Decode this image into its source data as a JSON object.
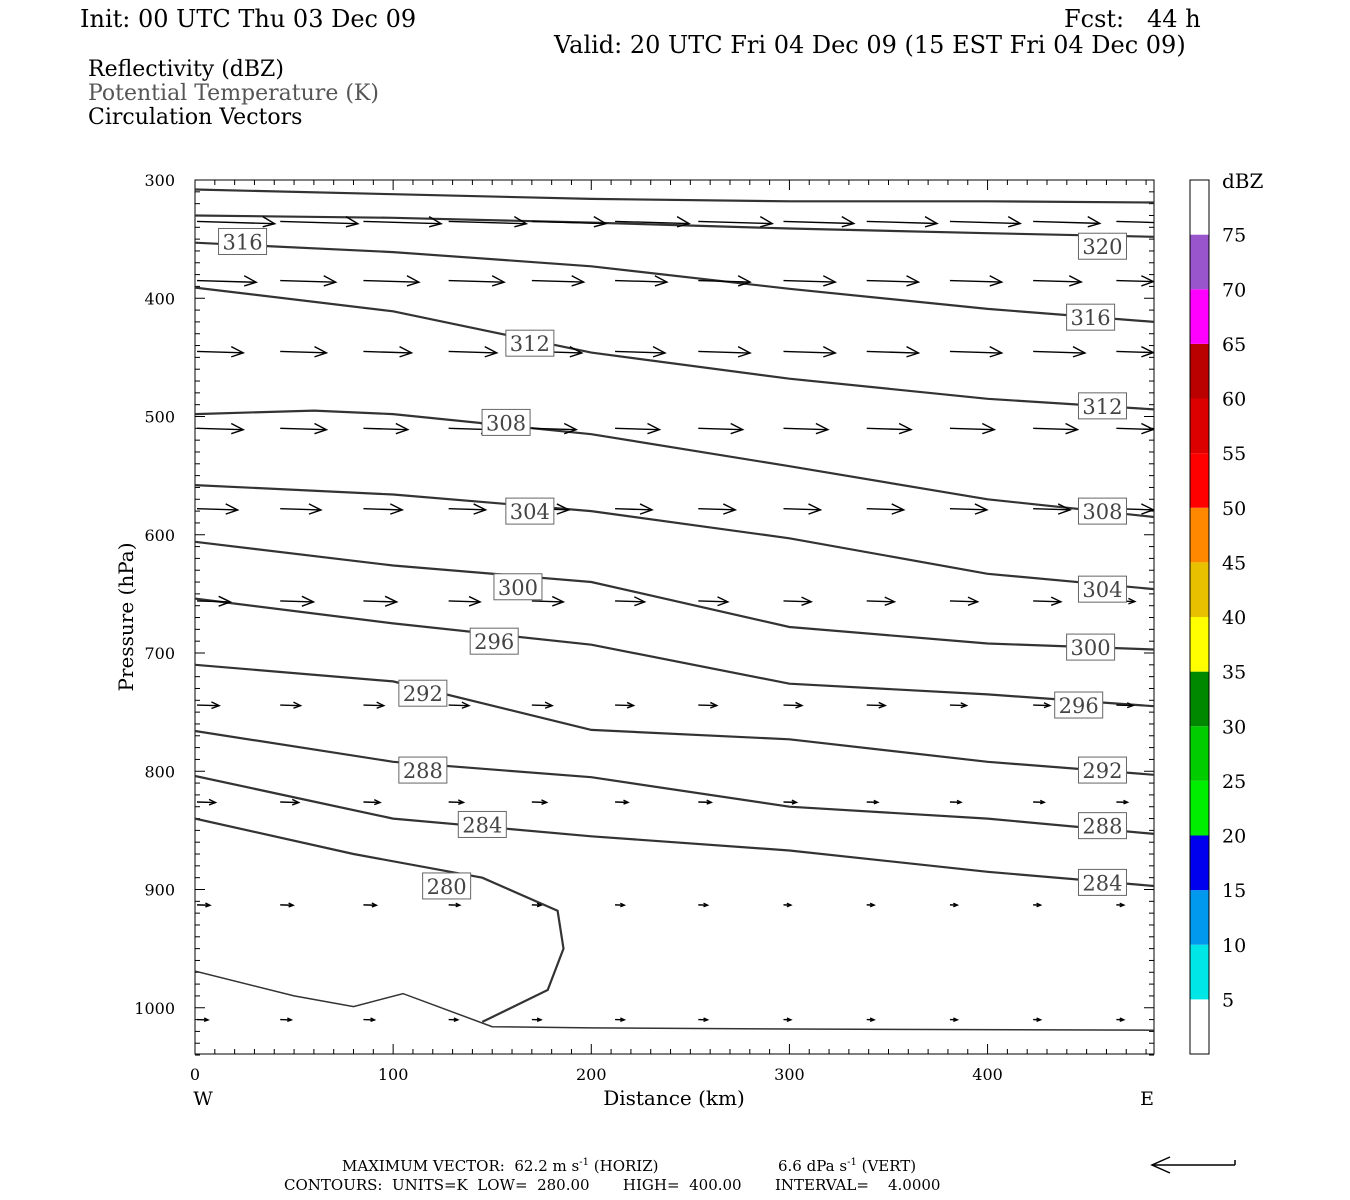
{
  "header": {
    "init": "Init: 00 UTC Thu 03 Dec 09",
    "fcst": "Fcst:   44 h",
    "valid": "Valid: 20 UTC Fri 04 Dec 09 (15 EST Fri 04 Dec 09)"
  },
  "fields": {
    "reflectivity": "Reflectivity (dBZ)",
    "theta": "Potential Temperature (K)",
    "vectors": "Circulation Vectors"
  },
  "axes": {
    "ylabel": "Pressure (hPa)",
    "xlabel": "Distance (km)",
    "west": "W",
    "east": "E"
  },
  "colorbar": {
    "title": "dBZ",
    "levels": [
      "5",
      "10",
      "15",
      "20",
      "25",
      "30",
      "35",
      "40",
      "45",
      "50",
      "55",
      "60",
      "65",
      "70",
      "75"
    ],
    "colors": [
      "#ffffff",
      "#00e6e6",
      "#0099ee",
      "#0000ee",
      "#00ee00",
      "#00cc00",
      "#008800",
      "#ffff00",
      "#e8c000",
      "#ff8800",
      "#ff0000",
      "#dd0000",
      "#bb0000",
      "#ff00ff",
      "#9955cc",
      "#ffffff"
    ]
  },
  "footer": {
    "max_vector": "MAXIMUM VECTOR:  62.2 m s",
    "max_vector_exp": "-1",
    "horiz": "(HORIZ)",
    "vert_val": "6.6 dPa s",
    "vert_exp": "-1",
    "vert": "(VERT)",
    "contours": "CONTOURS:  UNITS=K  LOW=  280.00       HIGH=  400.00       INTERVAL=    4.0000"
  },
  "chart_data": {
    "type": "line",
    "xlabel": "Distance (km)",
    "ylabel": "Pressure (hPa)",
    "xlim": [
      0,
      484
    ],
    "ylim": [
      1040,
      300
    ],
    "xticks": [
      0,
      100,
      200,
      300,
      400
    ],
    "yticks": [
      300,
      400,
      500,
      600,
      700,
      800,
      900,
      1000
    ],
    "series": [
      {
        "name": "",
        "x": [
          0,
          100,
          200,
          300,
          400,
          484
        ],
        "y": [
          308,
          312,
          316,
          318,
          318,
          319
        ]
      },
      {
        "name": "320",
        "x": [
          0,
          100,
          200,
          300,
          400,
          484
        ],
        "y": [
          330,
          332,
          336,
          341,
          345,
          348
        ]
      },
      {
        "name": "316",
        "x": [
          0,
          100,
          200,
          300,
          400,
          484
        ],
        "y": [
          353,
          361,
          373,
          392,
          409,
          420
        ]
      },
      {
        "name": "312",
        "x": [
          0,
          100,
          200,
          300,
          400,
          484
        ],
        "y": [
          391,
          411,
          446,
          468,
          485,
          494
        ]
      },
      {
        "name": "308",
        "x": [
          0,
          60,
          100,
          200,
          300,
          400,
          484
        ],
        "y": [
          498,
          495,
          498,
          515,
          542,
          570,
          585
        ]
      },
      {
        "name": "304",
        "x": [
          0,
          100,
          200,
          300,
          400,
          484
        ],
        "y": [
          558,
          566,
          580,
          603,
          633,
          646
        ]
      },
      {
        "name": "300",
        "x": [
          0,
          100,
          200,
          300,
          400,
          484
        ],
        "y": [
          606,
          626,
          640,
          678,
          692,
          697
        ]
      },
      {
        "name": "296",
        "x": [
          0,
          100,
          200,
          300,
          400,
          484
        ],
        "y": [
          654,
          675,
          693,
          726,
          735,
          745
        ]
      },
      {
        "name": "292",
        "x": [
          0,
          100,
          200,
          300,
          400,
          484
        ],
        "y": [
          710,
          724,
          765,
          773,
          792,
          803
        ]
      },
      {
        "name": "288",
        "x": [
          0,
          100,
          200,
          300,
          400,
          484
        ],
        "y": [
          766,
          792,
          805,
          830,
          840,
          853
        ]
      },
      {
        "name": "284",
        "x": [
          0,
          100,
          200,
          300,
          400,
          484
        ],
        "y": [
          804,
          840,
          855,
          867,
          885,
          897
        ]
      },
      {
        "name": "280",
        "x": [
          0,
          80,
          145,
          183,
          186,
          178,
          145
        ],
        "y": [
          840,
          870,
          890,
          918,
          950,
          985,
          1012
        ]
      },
      {
        "name": "",
        "x": [
          0,
          50,
          80,
          105,
          150,
          200,
          300,
          484
        ],
        "y": [
          969,
          990,
          999,
          988,
          1016,
          1017,
          1018,
          1019
        ]
      }
    ],
    "contour_labels": [
      {
        "text": "316",
        "x": 24,
        "y": 352
      },
      {
        "text": "320",
        "x": 458,
        "y": 356
      },
      {
        "text": "312",
        "x": 169,
        "y": 438
      },
      {
        "text": "316",
        "x": 452,
        "y": 416
      },
      {
        "text": "308",
        "x": 157,
        "y": 505
      },
      {
        "text": "312",
        "x": 458,
        "y": 491
      },
      {
        "text": "304",
        "x": 169,
        "y": 580
      },
      {
        "text": "308",
        "x": 458,
        "y": 580
      },
      {
        "text": "300",
        "x": 163,
        "y": 644
      },
      {
        "text": "304",
        "x": 458,
        "y": 646
      },
      {
        "text": "296",
        "x": 151,
        "y": 690
      },
      {
        "text": "300",
        "x": 452,
        "y": 695
      },
      {
        "text": "292",
        "x": 115,
        "y": 734
      },
      {
        "text": "296",
        "x": 446,
        "y": 744
      },
      {
        "text": "288",
        "x": 115,
        "y": 799
      },
      {
        "text": "292",
        "x": 458,
        "y": 799
      },
      {
        "text": "284",
        "x": 145,
        "y": 845
      },
      {
        "text": "288",
        "x": 458,
        "y": 846
      },
      {
        "text": "280",
        "x": 127,
        "y": 897
      },
      {
        "text": "284",
        "x": 458,
        "y": 894
      }
    ],
    "vectors": {
      "note_units": "u in relative arrow length units",
      "x": [
        0,
        42,
        84,
        127,
        169,
        211,
        253,
        296,
        338,
        380,
        422,
        464
      ],
      "rows": [
        {
          "p": 335,
          "u": [
            42,
            42,
            42,
            42,
            40,
            40,
            40,
            38,
            38,
            38,
            36,
            34
          ]
        },
        {
          "p": 385,
          "u": [
            32,
            30,
            30,
            30,
            28,
            28,
            28,
            28,
            28,
            28,
            26,
            20
          ]
        },
        {
          "p": 445,
          "u": [
            25,
            25,
            26,
            26,
            27,
            27,
            28,
            28,
            28,
            28,
            28,
            20
          ]
        },
        {
          "p": 510,
          "u": [
            25,
            25,
            24,
            24,
            24,
            24,
            24,
            24,
            24,
            24,
            24,
            20
          ]
        },
        {
          "p": 578,
          "u": [
            22,
            22,
            21,
            20,
            20,
            20,
            20,
            20,
            20,
            20,
            20,
            20
          ]
        },
        {
          "p": 656,
          "u": [
            18,
            18,
            18,
            17,
            17,
            16,
            16,
            15,
            15,
            15,
            15,
            10
          ]
        },
        {
          "p": 744,
          "u": [
            12,
            11,
            11,
            11,
            11,
            10,
            10,
            10,
            10,
            9,
            9,
            9
          ]
        },
        {
          "p": 826,
          "u": [
            10,
            10,
            9,
            8,
            8,
            7,
            7,
            7,
            6,
            6,
            6,
            6
          ]
        },
        {
          "p": 913,
          "u": [
            7,
            7,
            7,
            6,
            5,
            5,
            5,
            4,
            4,
            4,
            4,
            4
          ]
        },
        {
          "p": 1010,
          "u": [
            6,
            6,
            6,
            5,
            5,
            5,
            5,
            4,
            4,
            4,
            4,
            4
          ]
        }
      ]
    }
  }
}
